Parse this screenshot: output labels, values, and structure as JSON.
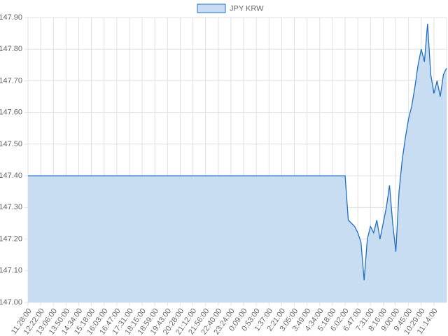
{
  "chart_data": {
    "type": "line",
    "categories": [
      "11:28:00",
      null,
      null,
      null,
      "12:22:00",
      null,
      null,
      null,
      "13:06:00",
      null,
      null,
      null,
      "13:50:00",
      null,
      null,
      null,
      "14:34:00",
      null,
      null,
      null,
      "15:18:00",
      null,
      null,
      null,
      "16:03:00",
      null,
      null,
      null,
      "16:47:00",
      null,
      null,
      null,
      "17:31:00",
      null,
      null,
      null,
      "18:15:00",
      null,
      null,
      null,
      "18:59:00",
      null,
      null,
      null,
      "19:43:00",
      null,
      null,
      null,
      "20:28:00",
      null,
      null,
      null,
      "21:12:00",
      null,
      null,
      null,
      "21:56:00",
      null,
      null,
      null,
      "22:40:00",
      null,
      null,
      null,
      "23:24:00",
      null,
      null,
      null,
      "0:09:00",
      null,
      null,
      null,
      "0:53:00",
      null,
      null,
      null,
      "1:37:00",
      null,
      null,
      null,
      "2:21:00",
      null,
      null,
      null,
      "3:05:00",
      null,
      null,
      null,
      "3:49:00",
      null,
      null,
      null,
      "4:34:00",
      null,
      null,
      null,
      "5:18:00",
      null,
      null,
      null,
      "6:02:00",
      null,
      null,
      null,
      "6:47:00",
      null,
      null,
      null,
      "7:31:00",
      null,
      null,
      null,
      "8:16:00",
      null,
      null,
      null,
      "9:00:00",
      null,
      null,
      null,
      "9:45:00",
      null,
      null,
      null,
      "10:29:00",
      null,
      null,
      null,
      "11:14:00",
      null,
      null,
      null,
      null
    ],
    "series": [
      {
        "name": "JPY KRW",
        "color": "#1f6fc5",
        "fill": "#c9ddf2",
        "values": [
          147.4,
          147.4,
          147.4,
          147.4,
          147.4,
          147.4,
          147.4,
          147.4,
          147.4,
          147.4,
          147.4,
          147.4,
          147.4,
          147.4,
          147.4,
          147.4,
          147.4,
          147.4,
          147.4,
          147.4,
          147.4,
          147.4,
          147.4,
          147.4,
          147.4,
          147.4,
          147.4,
          147.4,
          147.4,
          147.4,
          147.4,
          147.4,
          147.4,
          147.4,
          147.4,
          147.4,
          147.4,
          147.4,
          147.4,
          147.4,
          147.4,
          147.4,
          147.4,
          147.4,
          147.4,
          147.4,
          147.4,
          147.4,
          147.4,
          147.4,
          147.4,
          147.4,
          147.4,
          147.4,
          147.4,
          147.4,
          147.4,
          147.4,
          147.4,
          147.4,
          147.4,
          147.4,
          147.4,
          147.4,
          147.4,
          147.4,
          147.4,
          147.4,
          147.4,
          147.4,
          147.4,
          147.4,
          147.4,
          147.4,
          147.4,
          147.4,
          147.4,
          147.4,
          147.4,
          147.4,
          147.4,
          147.4,
          147.4,
          147.4,
          147.4,
          147.4,
          147.4,
          147.4,
          147.4,
          147.4,
          147.4,
          147.4,
          147.4,
          147.4,
          147.4,
          147.4,
          147.4,
          147.4,
          147.4,
          147.4,
          147.4,
          147.26,
          147.25,
          147.24,
          147.22,
          147.19,
          147.07,
          147.2,
          147.24,
          147.22,
          147.26,
          147.2,
          147.25,
          147.3,
          147.37,
          147.25,
          147.16,
          147.35,
          147.45,
          147.52,
          147.58,
          147.62,
          147.68,
          147.75,
          147.8,
          147.76,
          147.88,
          147.72,
          147.66,
          147.7,
          147.65,
          147.72,
          147.74
        ]
      }
    ],
    "ylim": [
      147.0,
      147.9
    ],
    "yticks": [
      {
        "value": 147.0,
        "label": "147.00"
      },
      {
        "value": 147.1,
        "label": "147.10"
      },
      {
        "value": 147.2,
        "label": "147.20"
      },
      {
        "value": 147.3,
        "label": "147.30"
      },
      {
        "value": 147.4,
        "label": "147.40"
      },
      {
        "value": 147.5,
        "label": "147.50"
      },
      {
        "value": 147.6,
        "label": "147.60"
      },
      {
        "value": 147.7,
        "label": "147.70"
      },
      {
        "value": 147.8,
        "label": "147.80"
      },
      {
        "value": 147.9,
        "label": "147.90"
      }
    ],
    "grid": true,
    "legend": "top"
  }
}
